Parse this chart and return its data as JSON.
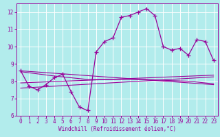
{
  "bg_color": "#b2ecec",
  "line_color": "#990099",
  "grid_color": "#ffffff",
  "xlabel": "Windchill (Refroidissement éolien,°C)",
  "xlim": [
    -0.5,
    23.5
  ],
  "ylim": [
    6,
    12.5
  ],
  "xticks": [
    0,
    1,
    2,
    3,
    4,
    5,
    6,
    7,
    8,
    9,
    10,
    11,
    12,
    13,
    14,
    15,
    16,
    17,
    18,
    19,
    20,
    21,
    22,
    23
  ],
  "yticks": [
    6,
    7,
    8,
    9,
    10,
    11,
    12
  ],
  "series": [
    [
      0,
      8.6
    ],
    [
      1,
      7.7
    ],
    [
      2,
      7.5
    ],
    [
      3,
      7.8
    ],
    [
      4,
      8.2
    ],
    [
      5,
      8.4
    ],
    [
      6,
      7.4
    ],
    [
      7,
      6.5
    ],
    [
      8,
      6.3
    ],
    [
      9,
      9.7
    ],
    [
      10,
      10.3
    ],
    [
      11,
      10.5
    ],
    [
      12,
      11.7
    ],
    [
      13,
      11.8
    ],
    [
      14,
      12.0
    ],
    [
      15,
      12.2
    ],
    [
      16,
      11.8
    ],
    [
      17,
      10.0
    ],
    [
      18,
      9.8
    ],
    [
      19,
      9.9
    ],
    [
      20,
      9.5
    ],
    [
      21,
      10.4
    ],
    [
      22,
      10.3
    ],
    [
      23,
      9.2
    ]
  ],
  "line2": [
    [
      0,
      8.6
    ],
    [
      23,
      7.8
    ]
  ],
  "line3": [
    [
      0,
      7.9
    ],
    [
      23,
      8.35
    ]
  ],
  "line4": [
    [
      0,
      7.6
    ],
    [
      23,
      8.25
    ]
  ],
  "line5": [
    [
      0,
      8.55
    ],
    [
      4,
      8.3
    ],
    [
      8,
      8.1
    ],
    [
      15,
      8.1
    ],
    [
      17,
      8.05
    ],
    [
      20,
      8.0
    ],
    [
      23,
      7.85
    ]
  ]
}
